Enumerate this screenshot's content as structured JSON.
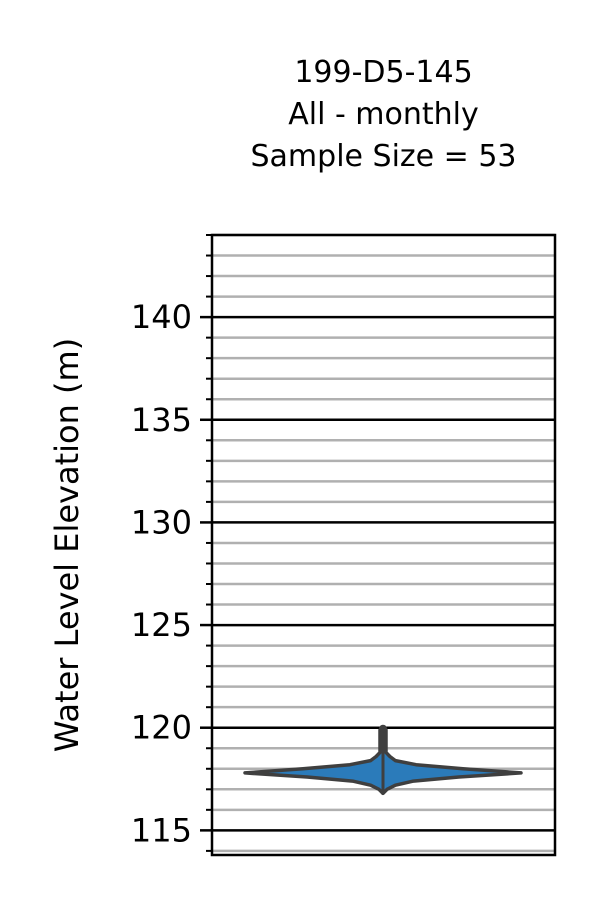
{
  "chart_data": {
    "type": "violin",
    "title_lines": [
      "199-D5-145",
      "All - monthly",
      "Sample Size = 53"
    ],
    "ylabel": "Water Level Elevation (m)",
    "xlabel": "",
    "ylim": [
      113.8,
      144.0
    ],
    "yticks": [
      115,
      120,
      125,
      130,
      135,
      140
    ],
    "minor_tick_step": 1,
    "grid": {
      "major": "black",
      "minor": "gray"
    },
    "violin": {
      "color": "#2b7bba",
      "edge_color": "#3f3f3f",
      "min": 116.8,
      "max": 120.0,
      "mode": 117.8,
      "median": 117.8,
      "profile": [
        [
          116.8,
          0.0
        ],
        [
          117.0,
          0.03
        ],
        [
          117.2,
          0.09
        ],
        [
          117.4,
          0.22
        ],
        [
          117.6,
          0.55
        ],
        [
          117.8,
          1.0
        ],
        [
          118.0,
          0.58
        ],
        [
          118.2,
          0.24
        ],
        [
          118.4,
          0.09
        ],
        [
          118.6,
          0.05
        ],
        [
          118.8,
          0.02
        ],
        [
          119.0,
          0.012
        ],
        [
          119.3,
          0.008
        ],
        [
          119.6,
          0.008
        ],
        [
          119.9,
          0.005
        ],
        [
          120.0,
          0.0
        ]
      ]
    }
  }
}
